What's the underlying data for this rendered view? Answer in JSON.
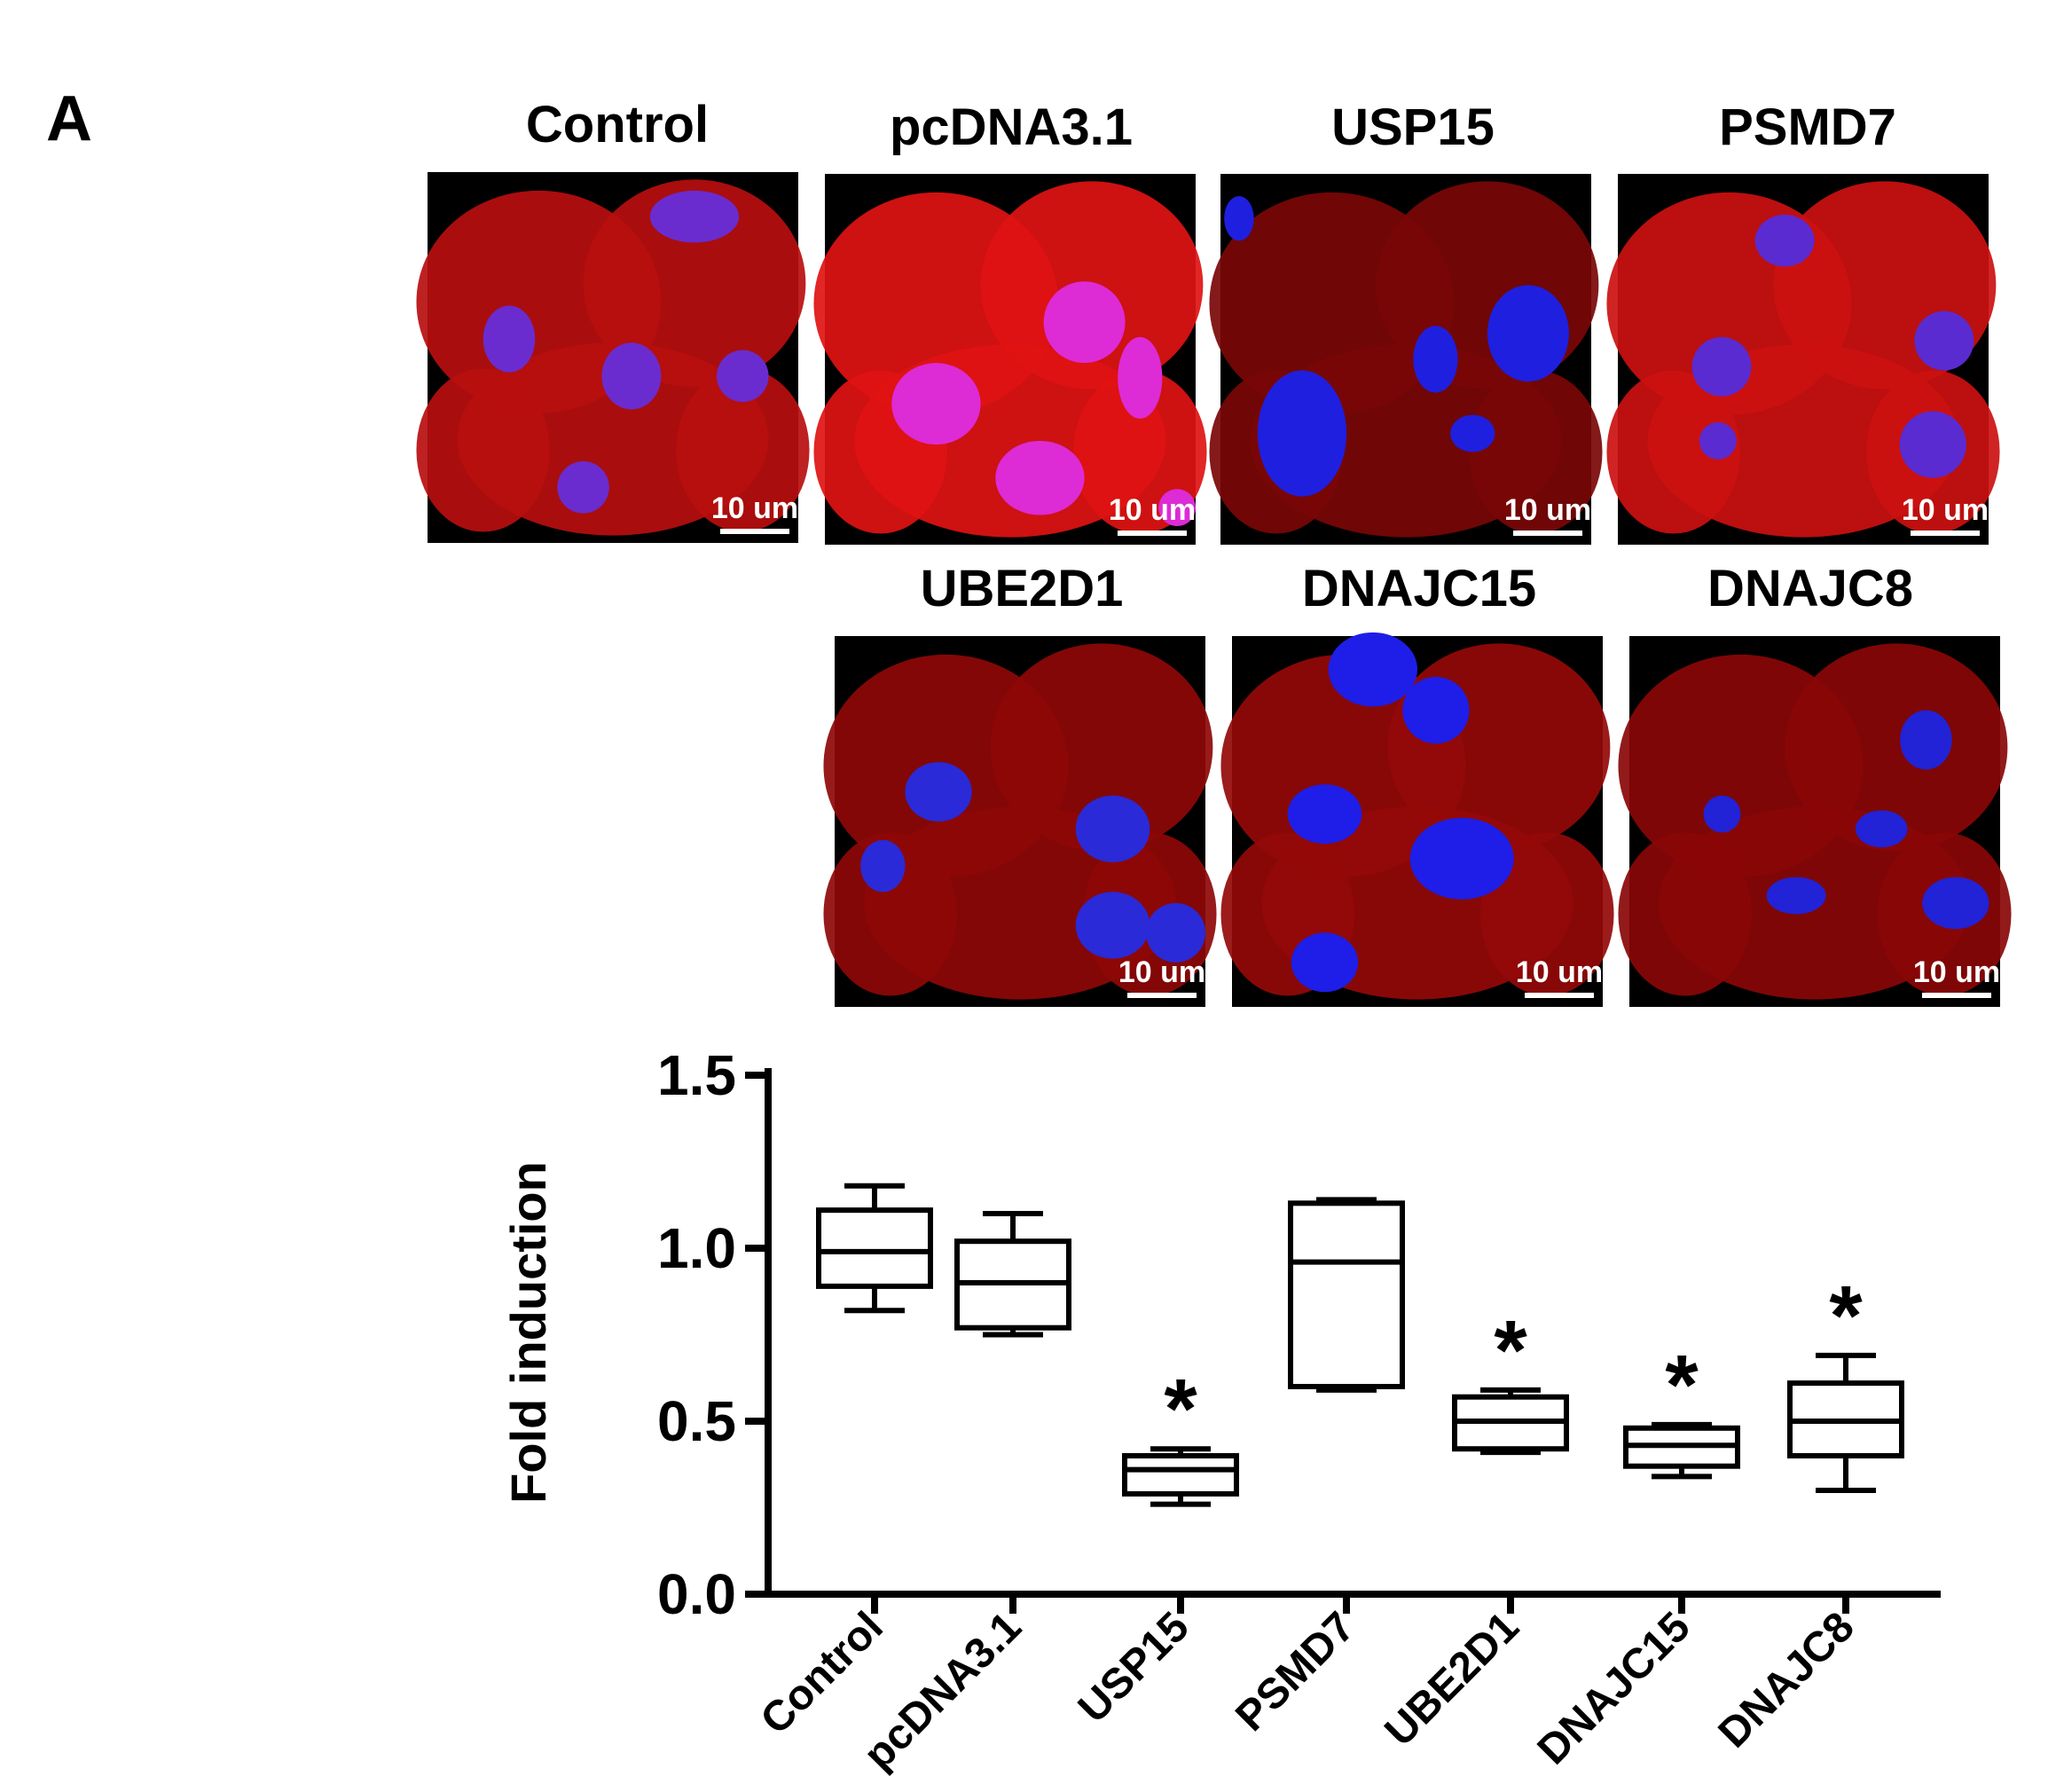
{
  "panel_label": "A",
  "micrographs": [
    {
      "title": "Control",
      "scale_bar": "10 um",
      "bg": "#b80e0e",
      "nuclei": "#6a2ccf"
    },
    {
      "title": "pcDNA3.1",
      "scale_bar": "10 um",
      "bg": "#e01212",
      "nuclei": "#dd2bd6"
    },
    {
      "title": "USP15",
      "scale_bar": "10 um",
      "bg": "#7a0606",
      "nuclei": "#1f1fe0"
    },
    {
      "title": "PSMD7",
      "scale_bar": "10 um",
      "bg": "#cc1010",
      "nuclei": "#5a2bd0"
    },
    {
      "title": "UBE2D1",
      "scale_bar": "10 um",
      "bg": "#8e0808",
      "nuclei": "#2a2ad8"
    },
    {
      "title": "DNAJC15",
      "scale_bar": "10 um",
      "bg": "#940909",
      "nuclei": "#1e1ee8"
    },
    {
      "title": "DNAJC8",
      "scale_bar": "10 um",
      "bg": "#8a0707",
      "nuclei": "#2222d6"
    }
  ],
  "chart_data": {
    "type": "box",
    "ylabel": "Fold induction",
    "xlabel": "",
    "ylim": [
      0.0,
      1.5
    ],
    "yticks": [
      "0.0",
      "0.5",
      "1.0",
      "1.5"
    ],
    "categories": [
      "Control",
      "pcDNA3.1",
      "USP15",
      "PSMD7",
      "UBE2D1",
      "DNAJC15",
      "DNAJC8"
    ],
    "boxes": [
      {
        "min": 0.82,
        "q1": 0.89,
        "median": 0.99,
        "q3": 1.11,
        "max": 1.18,
        "significance": ""
      },
      {
        "min": 0.75,
        "q1": 0.77,
        "median": 0.9,
        "q3": 1.02,
        "max": 1.1,
        "significance": ""
      },
      {
        "min": 0.26,
        "q1": 0.29,
        "median": 0.36,
        "q3": 0.4,
        "max": 0.42,
        "significance": "*"
      },
      {
        "min": 0.59,
        "q1": 0.6,
        "median": 0.96,
        "q3": 1.13,
        "max": 1.14,
        "significance": ""
      },
      {
        "min": 0.41,
        "q1": 0.42,
        "median": 0.5,
        "q3": 0.57,
        "max": 0.59,
        "significance": "*"
      },
      {
        "min": 0.34,
        "q1": 0.37,
        "median": 0.43,
        "q3": 0.48,
        "max": 0.49,
        "significance": "*"
      },
      {
        "min": 0.3,
        "q1": 0.4,
        "median": 0.5,
        "q3": 0.61,
        "max": 0.69,
        "significance": "*"
      }
    ]
  }
}
